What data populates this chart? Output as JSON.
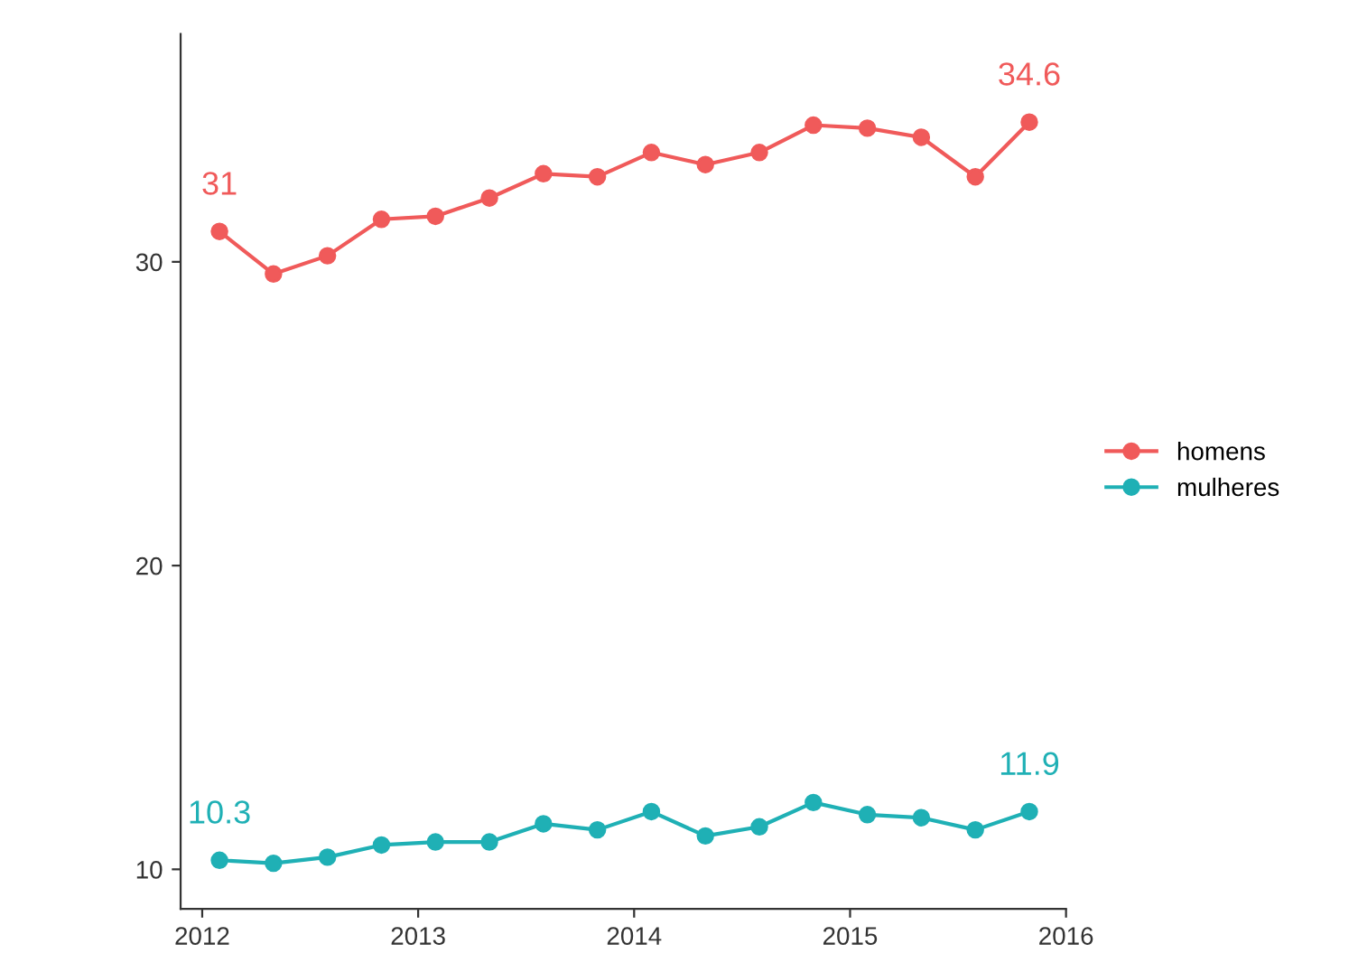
{
  "chart_data": {
    "type": "line",
    "x": [
      2012.08,
      2012.33,
      2012.58,
      2012.83,
      2013.08,
      2013.33,
      2013.58,
      2013.83,
      2014.08,
      2014.33,
      2014.58,
      2014.83,
      2015.08,
      2015.33,
      2015.58,
      2015.83
    ],
    "series": [
      {
        "name": "homens",
        "color": "#f05a5a",
        "values": [
          31,
          29.6,
          30.2,
          31.4,
          31.5,
          32.1,
          32.9,
          32.8,
          33.6,
          33.2,
          33.6,
          34.5,
          34.4,
          34.1,
          32.8,
          34.6
        ],
        "value_labels": [
          "31",
          null,
          null,
          null,
          null,
          null,
          null,
          null,
          null,
          null,
          null,
          null,
          null,
          null,
          null,
          "34.6"
        ]
      },
      {
        "name": "mulheres",
        "color": "#1fb0b5",
        "values": [
          10.3,
          10.2,
          10.4,
          10.8,
          10.9,
          10.9,
          11.5,
          11.3,
          11.9,
          11.1,
          11.4,
          12.2,
          11.8,
          11.7,
          11.3,
          11.9
        ],
        "value_labels": [
          "10.3",
          null,
          null,
          null,
          null,
          null,
          null,
          null,
          null,
          null,
          null,
          null,
          null,
          null,
          null,
          "11.9"
        ]
      }
    ],
    "xlim": [
      2011.9,
      2016
    ],
    "xticks": [
      2012,
      2013,
      2014,
      2015,
      2016
    ],
    "ylim": [
      8.7,
      37.5
    ],
    "yticks": [
      10,
      20,
      30
    ],
    "grid": false,
    "legend": "right",
    "marker": "circle",
    "line_style": "solid"
  }
}
